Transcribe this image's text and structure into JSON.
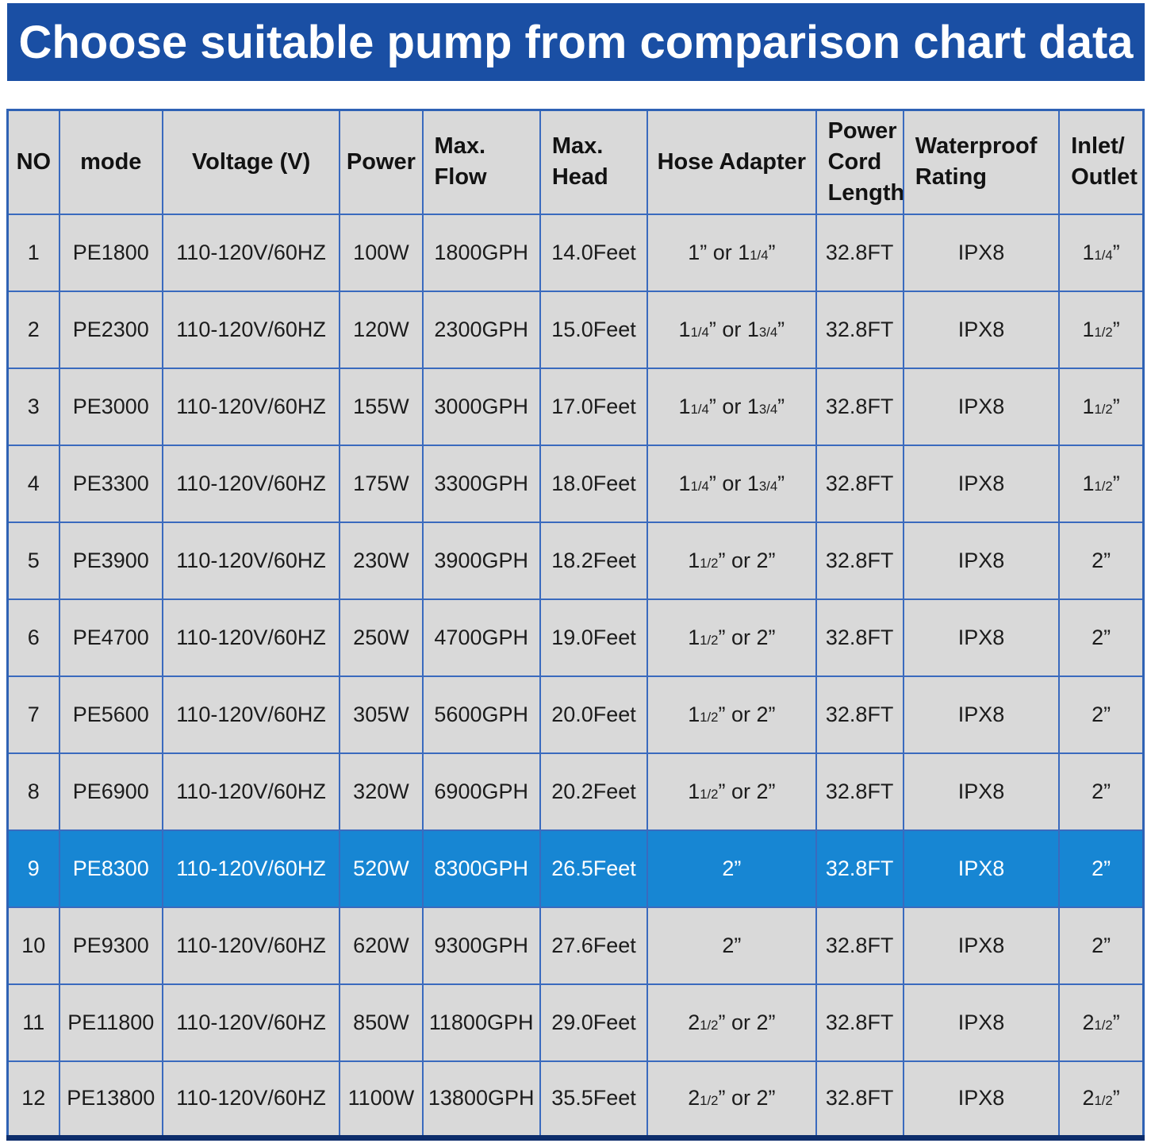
{
  "title": "Choose suitable pump from comparison chart data",
  "table": {
    "columns": [
      {
        "key": "no",
        "label": "NO"
      },
      {
        "key": "mode",
        "label": "mode"
      },
      {
        "key": "voltage",
        "label": "Voltage (V)"
      },
      {
        "key": "power",
        "label": "Power"
      },
      {
        "key": "max-flow",
        "label": "Max.\nFlow"
      },
      {
        "key": "max-head",
        "label": "Max.\nHead"
      },
      {
        "key": "hose-adapter",
        "label": "Hose Adapter"
      },
      {
        "key": "power-cord-length",
        "label": "Power\nCord\nLength"
      },
      {
        "key": "waterproof-rating",
        "label": "Waterproof\nRating"
      },
      {
        "key": "inlet-outlet",
        "label": "Inlet/\nOutlet"
      }
    ],
    "highlighted_row_index": 8,
    "rows": [
      [
        "1",
        "PE1800",
        "110-120V/60HZ",
        "100W",
        "1800GPH",
        "14.0Feet",
        "1” or 1{1/4}”",
        "32.8FT",
        "IPX8",
        "1{1/4}”"
      ],
      [
        "2",
        "PE2300",
        "110-120V/60HZ",
        "120W",
        "2300GPH",
        "15.0Feet",
        "1{1/4}” or 1{3/4}”",
        "32.8FT",
        "IPX8",
        "1{1/2}”"
      ],
      [
        "3",
        "PE3000",
        "110-120V/60HZ",
        "155W",
        "3000GPH",
        "17.0Feet",
        "1{1/4}” or 1{3/4}”",
        "32.8FT",
        "IPX8",
        "1{1/2}”"
      ],
      [
        "4",
        "PE3300",
        "110-120V/60HZ",
        "175W",
        "3300GPH",
        "18.0Feet",
        "1{1/4}” or 1{3/4}”",
        "32.8FT",
        "IPX8",
        "1{1/2}”"
      ],
      [
        "5",
        "PE3900",
        "110-120V/60HZ",
        "230W",
        "3900GPH",
        "18.2Feet",
        "1{1/2}” or 2”",
        "32.8FT",
        "IPX8",
        "2”"
      ],
      [
        "6",
        "PE4700",
        "110-120V/60HZ",
        "250W",
        "4700GPH",
        "19.0Feet",
        "1{1/2}” or 2”",
        "32.8FT",
        "IPX8",
        "2”"
      ],
      [
        "7",
        "PE5600",
        "110-120V/60HZ",
        "305W",
        "5600GPH",
        "20.0Feet",
        "1{1/2}” or 2”",
        "32.8FT",
        "IPX8",
        "2”"
      ],
      [
        "8",
        "PE6900",
        "110-120V/60HZ",
        "320W",
        "6900GPH",
        "20.2Feet",
        "1{1/2}” or 2”",
        "32.8FT",
        "IPX8",
        "2”"
      ],
      [
        "9",
        "PE8300",
        "110-120V/60HZ",
        "520W",
        "8300GPH",
        "26.5Feet",
        "2”",
        "32.8FT",
        "IPX8",
        "2”"
      ],
      [
        "10",
        "PE9300",
        "110-120V/60HZ",
        "620W",
        "9300GPH",
        "27.6Feet",
        "2”",
        "32.8FT",
        "IPX8",
        "2”"
      ],
      [
        "11",
        "PE11800",
        "110-120V/60HZ",
        "850W",
        "11800GPH",
        "29.0Feet",
        "2{1/2}” or 2”",
        "32.8FT",
        "IPX8",
        "2{1/2}”"
      ],
      [
        "12",
        "PE13800",
        "110-120V/60HZ",
        "1100W",
        "13800GPH",
        "35.5Feet",
        "2{1/2}” or 2”",
        "32.8FT",
        "IPX8",
        "2{1/2}”"
      ]
    ]
  },
  "chart_data": {
    "type": "table",
    "title": "Choose suitable pump from comparison chart data",
    "columns": [
      "NO",
      "mode",
      "Voltage (V)",
      "Power",
      "Max. Flow",
      "Max. Head",
      "Hose Adapter",
      "Power Cord Length",
      "Waterproof Rating",
      "Inlet/Outlet"
    ],
    "rows": [
      [
        "1",
        "PE1800",
        "110-120V/60HZ",
        "100W",
        "1800GPH",
        "14.0Feet",
        "1” or 1 1/4”",
        "32.8FT",
        "IPX8",
        "1 1/4”"
      ],
      [
        "2",
        "PE2300",
        "110-120V/60HZ",
        "120W",
        "2300GPH",
        "15.0Feet",
        "1 1/4” or 1 3/4”",
        "32.8FT",
        "IPX8",
        "1 1/2”"
      ],
      [
        "3",
        "PE3000",
        "110-120V/60HZ",
        "155W",
        "3000GPH",
        "17.0Feet",
        "1 1/4” or 1 3/4”",
        "32.8FT",
        "IPX8",
        "1 1/2”"
      ],
      [
        "4",
        "PE3300",
        "110-120V/60HZ",
        "175W",
        "3300GPH",
        "18.0Feet",
        "1 1/4” or 1 3/4”",
        "32.8FT",
        "IPX8",
        "1 1/2”"
      ],
      [
        "5",
        "PE3900",
        "110-120V/60HZ",
        "230W",
        "3900GPH",
        "18.2Feet",
        "1 1/2” or 2”",
        "32.8FT",
        "IPX8",
        "2”"
      ],
      [
        "6",
        "PE4700",
        "110-120V/60HZ",
        "250W",
        "4700GPH",
        "19.0Feet",
        "1 1/2” or 2”",
        "32.8FT",
        "IPX8",
        "2”"
      ],
      [
        "7",
        "PE5600",
        "110-120V/60HZ",
        "305W",
        "5600GPH",
        "20.0Feet",
        "1 1/2” or 2”",
        "32.8FT",
        "IPX8",
        "2”"
      ],
      [
        "8",
        "PE6900",
        "110-120V/60HZ",
        "320W",
        "6900GPH",
        "20.2Feet",
        "1 1/2” or 2”",
        "32.8FT",
        "IPX8",
        "2”"
      ],
      [
        "9",
        "PE8300",
        "110-120V/60HZ",
        "520W",
        "8300GPH",
        "26.5Feet",
        "2”",
        "32.8FT",
        "IPX8",
        "2”"
      ],
      [
        "10",
        "PE9300",
        "110-120V/60HZ",
        "620W",
        "9300GPH",
        "27.6Feet",
        "2”",
        "32.8FT",
        "IPX8",
        "2”"
      ],
      [
        "11",
        "PE11800",
        "110-120V/60HZ",
        "850W",
        "11800GPH",
        "29.0Feet",
        "2 1/2” or 2”",
        "32.8FT",
        "IPX8",
        "2 1/2”"
      ],
      [
        "12",
        "PE13800",
        "110-120V/60HZ",
        "1100W",
        "13800GPH",
        "35.5Feet",
        "2 1/2” or 2”",
        "32.8FT",
        "IPX8",
        "2 1/2”"
      ]
    ],
    "highlighted_row": "PE8300"
  },
  "colors": {
    "banner_bg": "#1a4fa4",
    "banner_text": "#ffffff",
    "cell_bg": "#d9d9d9",
    "grid_line": "#3a6abe",
    "outer_border": "#2f62b5",
    "bottom_border": "#0d2d6b",
    "highlight_row_bg": "#1786d3",
    "highlight_row_text": "#ffffff",
    "cell_text": "#1c1c1c"
  }
}
